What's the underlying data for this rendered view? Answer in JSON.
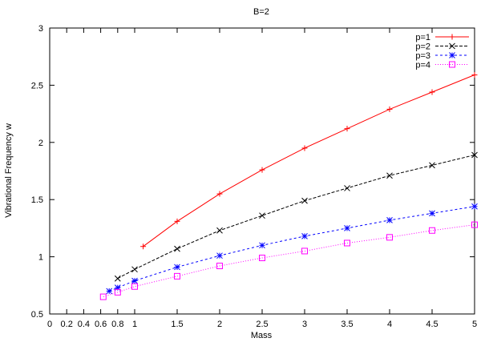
{
  "chart_data": {
    "type": "line",
    "title": "B=2",
    "xlabel": "Mass",
    "ylabel": "Vibrational Frequency w",
    "xlim": [
      0,
      5
    ],
    "ylim": [
      0.5,
      3
    ],
    "xticks": [
      0,
      0.2,
      0.4,
      0.6,
      0.8,
      1,
      1.5,
      2,
      2.5,
      3,
      3.5,
      4,
      4.5,
      5
    ],
    "xtick_labels": [
      "0",
      "0.2",
      "0.4",
      "0.6",
      "0.8",
      "1",
      "1.5",
      "2",
      "2.5",
      "3",
      "3.5",
      "4",
      "4.5",
      "5"
    ],
    "yticks": [
      0.5,
      1,
      1.5,
      2,
      2.5,
      3
    ],
    "ytick_labels": [
      "0.5",
      "1",
      "1.5",
      "2",
      "2.5",
      "3"
    ],
    "grid": false,
    "legend_position": "top-right",
    "series": [
      {
        "name": "p=1",
        "color": "#ff0000",
        "marker": "plus",
        "dash": "solid",
        "x": [
          1.1,
          1.5,
          2,
          2.5,
          3,
          3.5,
          4,
          4.5,
          5
        ],
        "y": [
          1.09,
          1.31,
          1.55,
          1.76,
          1.95,
          2.12,
          2.29,
          2.44,
          2.59
        ]
      },
      {
        "name": "p=2",
        "color": "#000000",
        "marker": "cross",
        "dash": "dashed",
        "x": [
          0.8,
          1,
          1.5,
          2,
          2.5,
          3,
          3.5,
          4,
          4.5,
          5
        ],
        "y": [
          0.81,
          0.89,
          1.07,
          1.23,
          1.36,
          1.49,
          1.6,
          1.71,
          1.8,
          1.89
        ]
      },
      {
        "name": "p=3",
        "color": "#0000ff",
        "marker": "star",
        "dash": "short-dashed",
        "x": [
          0.7,
          0.8,
          1,
          1.5,
          2,
          2.5,
          3,
          3.5,
          4,
          4.5,
          5
        ],
        "y": [
          0.7,
          0.73,
          0.79,
          0.91,
          1.01,
          1.1,
          1.18,
          1.25,
          1.32,
          1.38,
          1.44
        ]
      },
      {
        "name": "p=4",
        "color": "#ff00ff",
        "marker": "square",
        "dash": "dotted",
        "x": [
          0.63,
          0.8,
          1,
          1.5,
          2,
          2.5,
          3,
          3.5,
          4,
          4.5,
          5
        ],
        "y": [
          0.65,
          0.69,
          0.74,
          0.83,
          0.92,
          0.99,
          1.05,
          1.12,
          1.17,
          1.23,
          1.28
        ]
      }
    ]
  }
}
